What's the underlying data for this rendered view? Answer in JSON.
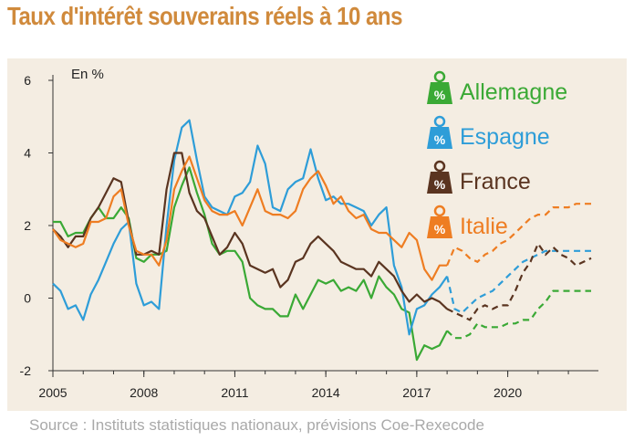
{
  "title": "Taux d'intérêt souverains réels à 10 ans",
  "source": "Source : Instituts statistiques nationaux, prévisions Coe-Rexecode",
  "colors": {
    "background_panel": "#f4ede2",
    "title": "#d08a3c",
    "axis": "#333333",
    "source": "#a9a9a9"
  },
  "legend_icon": "percent-weight-icon",
  "chart_data": {
    "type": "line",
    "ylabel": "En %",
    "xlim": [
      2005,
      2022.75
    ],
    "ylim": [
      -2,
      6
    ],
    "x_ticks": [
      "2005",
      "2008",
      "2011",
      "2014",
      "2017",
      "2020"
    ],
    "y_ticks": [
      "6",
      "4",
      "2",
      "0",
      "-2"
    ],
    "grid": false,
    "legend_position": "top-right",
    "forecast_start": 2018,
    "series": [
      {
        "name": "Allemagne",
        "color": "#3aa935",
        "x": [
          2005,
          2005.25,
          2005.5,
          2005.75,
          2006,
          2006.25,
          2006.5,
          2006.75,
          2007,
          2007.25,
          2007.5,
          2007.75,
          2008,
          2008.25,
          2008.5,
          2008.75,
          2009,
          2009.25,
          2009.5,
          2009.75,
          2010,
          2010.25,
          2010.5,
          2010.75,
          2011,
          2011.25,
          2011.5,
          2011.75,
          2012,
          2012.25,
          2012.5,
          2012.75,
          2013,
          2013.25,
          2013.5,
          2013.75,
          2014,
          2014.25,
          2014.5,
          2014.75,
          2015,
          2015.25,
          2015.5,
          2015.75,
          2016,
          2016.25,
          2016.5,
          2016.75,
          2017,
          2017.25,
          2017.5,
          2017.75,
          2018,
          2018.25,
          2018.5,
          2018.75,
          2019,
          2019.25,
          2019.5,
          2019.75,
          2020,
          2020.25,
          2020.5,
          2020.75,
          2021,
          2021.25,
          2021.5,
          2021.75,
          2022,
          2022.25,
          2022.5,
          2022.75
        ],
        "values": [
          2.1,
          2.1,
          1.7,
          1.8,
          1.8,
          2.2,
          2.5,
          2.2,
          2.2,
          2.5,
          2.2,
          1.1,
          1.0,
          1.2,
          1.2,
          1.3,
          2.5,
          3.1,
          3.6,
          2.9,
          2.3,
          1.5,
          1.2,
          1.3,
          1.3,
          1.0,
          0.0,
          -0.2,
          -0.3,
          -0.3,
          -0.5,
          -0.5,
          0.1,
          -0.3,
          0.1,
          0.5,
          0.4,
          0.5,
          0.2,
          0.3,
          0.2,
          0.5,
          0.0,
          0.6,
          0.3,
          0.1,
          -0.3,
          -0.4,
          -1.7,
          -1.3,
          -1.4,
          -1.3,
          -0.9,
          -1.1,
          -1.1,
          -1.0,
          -0.7,
          -0.8,
          -0.8,
          -0.8,
          -0.7,
          -0.7,
          -0.6,
          -0.6,
          -0.3,
          -0.1,
          0.2,
          0.2,
          0.2,
          0.2,
          0.2,
          0.2
        ]
      },
      {
        "name": "Espagne",
        "color": "#2e9dd8",
        "x": [
          2005,
          2005.25,
          2005.5,
          2005.75,
          2006,
          2006.25,
          2006.5,
          2006.75,
          2007,
          2007.25,
          2007.5,
          2007.75,
          2008,
          2008.25,
          2008.5,
          2008.75,
          2009,
          2009.25,
          2009.5,
          2009.75,
          2010,
          2010.25,
          2010.5,
          2010.75,
          2011,
          2011.25,
          2011.5,
          2011.75,
          2012,
          2012.25,
          2012.5,
          2012.75,
          2013,
          2013.25,
          2013.5,
          2013.75,
          2014,
          2014.25,
          2014.5,
          2014.75,
          2015,
          2015.25,
          2015.5,
          2015.75,
          2016,
          2016.25,
          2016.5,
          2016.75,
          2017,
          2017.25,
          2017.5,
          2017.75,
          2018,
          2018.25,
          2018.5,
          2018.75,
          2019,
          2019.25,
          2019.5,
          2019.75,
          2020,
          2020.25,
          2020.5,
          2020.75,
          2021,
          2021.25,
          2021.5,
          2021.75,
          2022,
          2022.25,
          2022.5,
          2022.75
        ],
        "values": [
          0.4,
          0.2,
          -0.3,
          -0.2,
          -0.6,
          0.1,
          0.5,
          1.0,
          1.5,
          1.9,
          2.1,
          0.4,
          -0.2,
          -0.1,
          -0.3,
          2.0,
          3.8,
          4.7,
          4.9,
          3.8,
          2.8,
          2.5,
          2.4,
          2.3,
          2.8,
          2.9,
          3.2,
          4.2,
          3.7,
          2.5,
          2.4,
          3.0,
          3.2,
          3.3,
          4.1,
          3.3,
          2.7,
          2.8,
          2.6,
          2.6,
          2.5,
          2.4,
          2.0,
          2.3,
          2.5,
          0.9,
          0.3,
          -1.0,
          -0.3,
          -0.2,
          0.1,
          0.3,
          0.6,
          -0.3,
          -0.4,
          -0.2,
          0.0,
          0.1,
          0.2,
          0.4,
          0.6,
          0.8,
          1.0,
          1.1,
          1.2,
          1.3,
          1.3,
          1.3,
          1.3,
          1.3,
          1.3,
          1.3
        ]
      },
      {
        "name": "France",
        "color": "#5a3420",
        "x": [
          2005,
          2005.25,
          2005.5,
          2005.75,
          2006,
          2006.25,
          2006.5,
          2006.75,
          2007,
          2007.25,
          2007.5,
          2007.75,
          2008,
          2008.25,
          2008.5,
          2008.75,
          2009,
          2009.25,
          2009.5,
          2009.75,
          2010,
          2010.25,
          2010.5,
          2010.75,
          2011,
          2011.25,
          2011.5,
          2011.75,
          2012,
          2012.25,
          2012.5,
          2012.75,
          2013,
          2013.25,
          2013.5,
          2013.75,
          2014,
          2014.25,
          2014.5,
          2014.75,
          2015,
          2015.25,
          2015.5,
          2015.75,
          2016,
          2016.25,
          2016.5,
          2016.75,
          2017,
          2017.25,
          2017.5,
          2017.75,
          2018,
          2018.25,
          2018.5,
          2018.75,
          2019,
          2019.25,
          2019.5,
          2019.75,
          2020,
          2020.25,
          2020.5,
          2020.75,
          2021,
          2021.25,
          2021.5,
          2021.75,
          2022,
          2022.25,
          2022.5,
          2022.75
        ],
        "values": [
          1.9,
          1.7,
          1.4,
          1.7,
          1.7,
          2.2,
          2.5,
          2.9,
          3.3,
          3.2,
          2.1,
          1.2,
          1.2,
          1.3,
          1.2,
          3.0,
          4.0,
          4.0,
          2.9,
          2.4,
          2.2,
          1.7,
          1.2,
          1.4,
          1.8,
          1.5,
          0.9,
          0.8,
          0.7,
          0.8,
          0.3,
          0.5,
          1.0,
          1.1,
          1.5,
          1.7,
          1.5,
          1.3,
          1.0,
          0.9,
          0.8,
          0.8,
          0.6,
          1.0,
          0.8,
          0.6,
          0.2,
          -0.1,
          0.1,
          -0.1,
          0.0,
          -0.1,
          -0.3,
          -0.4,
          -0.5,
          -0.6,
          -0.3,
          -0.2,
          -0.3,
          -0.2,
          -0.2,
          0.2,
          0.7,
          1.0,
          1.5,
          1.2,
          1.4,
          1.2,
          1.1,
          0.9,
          1.0,
          1.1
        ]
      },
      {
        "name": "Italie",
        "color": "#ee7d22",
        "x": [
          2005,
          2005.25,
          2005.5,
          2005.75,
          2006,
          2006.25,
          2006.5,
          2006.75,
          2007,
          2007.25,
          2007.5,
          2007.75,
          2008,
          2008.25,
          2008.5,
          2008.75,
          2009,
          2009.25,
          2009.5,
          2009.75,
          2010,
          2010.25,
          2010.5,
          2010.75,
          2011,
          2011.25,
          2011.5,
          2011.75,
          2012,
          2012.25,
          2012.5,
          2012.75,
          2013,
          2013.25,
          2013.5,
          2013.75,
          2014,
          2014.25,
          2014.5,
          2014.75,
          2015,
          2015.25,
          2015.5,
          2015.75,
          2016,
          2016.25,
          2016.5,
          2016.75,
          2017,
          2017.25,
          2017.5,
          2017.75,
          2018,
          2018.25,
          2018.5,
          2018.75,
          2019,
          2019.25,
          2019.5,
          2019.75,
          2020,
          2020.25,
          2020.5,
          2020.75,
          2021,
          2021.25,
          2021.5,
          2021.75,
          2022,
          2022.25,
          2022.5,
          2022.75
        ],
        "values": [
          1.9,
          1.6,
          1.5,
          1.4,
          1.5,
          2.1,
          2.1,
          2.2,
          2.8,
          3.0,
          2.0,
          1.3,
          1.2,
          1.2,
          0.9,
          1.6,
          3.0,
          3.5,
          3.9,
          3.3,
          2.7,
          2.4,
          2.3,
          2.3,
          2.4,
          2.0,
          2.5,
          3.0,
          2.4,
          2.3,
          2.3,
          2.2,
          2.4,
          3.0,
          3.3,
          3.5,
          3.1,
          2.6,
          2.8,
          2.4,
          2.2,
          2.3,
          1.9,
          1.8,
          1.8,
          1.6,
          1.4,
          1.8,
          1.6,
          0.8,
          0.5,
          0.9,
          0.9,
          1.4,
          1.3,
          1.1,
          1.0,
          1.2,
          1.3,
          1.5,
          1.6,
          1.8,
          2.0,
          2.2,
          2.3,
          2.3,
          2.5,
          2.5,
          2.5,
          2.6,
          2.6,
          2.6
        ]
      }
    ]
  }
}
